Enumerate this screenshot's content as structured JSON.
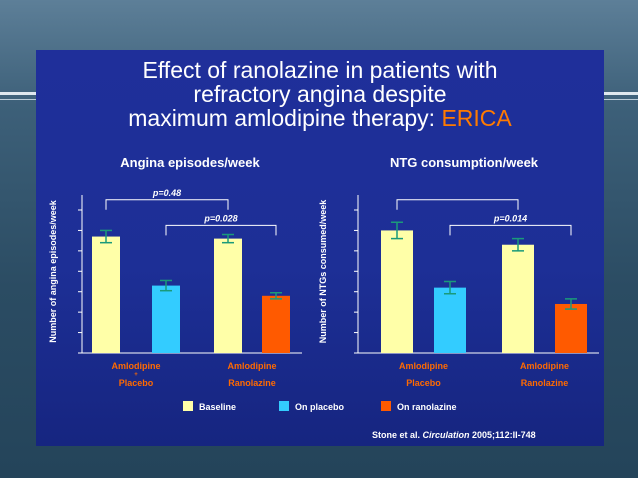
{
  "slide": {
    "title_line1": "Effect of ranolazine in patients with",
    "title_line2": "refractory angina despite",
    "title_line3_main": "maximum amlodipine therapy: ",
    "title_line3_accent": "ERICA",
    "citation_prefix": "Stone et al. ",
    "citation_journal": "Circulation",
    "citation_suffix": " 2005;112:II-748"
  },
  "colors": {
    "baseline": "#ffffa8",
    "on_placebo": "#33ccff",
    "on_ranolazine": "#ff5a00",
    "error_bar": "#1a9a7a",
    "category_text": "#ff6a00"
  },
  "legend": [
    {
      "label": "Baseline",
      "color": "#ffffa8"
    },
    {
      "label": "On placebo",
      "color": "#33ccff"
    },
    {
      "label": "On ranolazine",
      "color": "#ff5a00"
    }
  ],
  "chart_data": [
    {
      "type": "bar",
      "title": "Angina episodes/week",
      "ylabel": "Number of angina episodes/week",
      "xlabel": "",
      "ylim": [
        0,
        7
      ],
      "yticks": [
        0,
        1,
        2,
        3,
        4,
        5,
        6,
        7
      ],
      "grid": false,
      "groups": [
        {
          "label_line1": "Amlodipine",
          "plus": "+",
          "label_line2": "Placebo"
        },
        {
          "label_line1": "Amlodipine",
          "plus": "",
          "label_line2": "Ranolazine"
        }
      ],
      "bars": [
        {
          "group": 0,
          "series": "Baseline",
          "value": 5.7,
          "error": 0.3
        },
        {
          "group": 0,
          "series": "On placebo",
          "value": 3.3,
          "error": 0.25
        },
        {
          "group": 1,
          "series": "Baseline",
          "value": 5.6,
          "error": 0.2
        },
        {
          "group": 1,
          "series": "On ranolazine",
          "value": 2.8,
          "error": 0.15
        }
      ],
      "brackets": [
        {
          "label": "p=0.48",
          "from_bar": 0,
          "to_bar": 2,
          "y": 7.5
        },
        {
          "label": "p=0.028",
          "from_bar": 1,
          "to_bar": 3,
          "y": 6.25
        }
      ]
    },
    {
      "type": "bar",
      "title": "NTG consumption/week",
      "ylabel": "Number of NTGs consumed/week",
      "xlabel": "",
      "ylim": [
        0,
        7
      ],
      "yticks": [
        0,
        1,
        2,
        3,
        4,
        5,
        6,
        7
      ],
      "grid": false,
      "groups": [
        {
          "label_line1": "Amlodipine",
          "plus": "",
          "label_line2": "Placebo"
        },
        {
          "label_line1": "Amlodipine",
          "plus": "",
          "label_line2": "Ranolazine"
        }
      ],
      "bars": [
        {
          "group": 0,
          "series": "Baseline",
          "value": 6.0,
          "error": 0.4
        },
        {
          "group": 0,
          "series": "On placebo",
          "value": 3.2,
          "error": 0.3
        },
        {
          "group": 1,
          "series": "Baseline",
          "value": 5.3,
          "error": 0.3
        },
        {
          "group": 1,
          "series": "On ranolazine",
          "value": 2.4,
          "error": 0.25
        }
      ],
      "brackets": [
        {
          "label": "",
          "from_bar": 0,
          "to_bar": 2,
          "y": 7.5
        },
        {
          "label": "p=0.014",
          "from_bar": 1,
          "to_bar": 3,
          "y": 6.25
        }
      ]
    }
  ]
}
